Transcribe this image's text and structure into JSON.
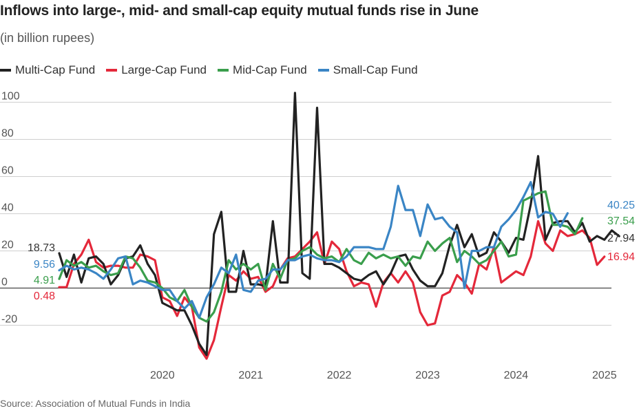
{
  "header": {
    "title": "Inflows into large-, mid- and small-cap equity mutual funds rise in June",
    "subtitle": "(in billion rupees)"
  },
  "footer": {
    "source": "Source: Association of Mutual Funds in India"
  },
  "chart_data": {
    "type": "line",
    "title": "Inflows into large-, mid- and small-cap equity mutual funds rise in June",
    "subtitle": "(in billion rupees)",
    "xlabel": "",
    "ylabel": "",
    "ylim": [
      -38,
      108
    ],
    "yticks": [
      -20,
      0,
      20,
      40,
      60,
      80,
      100
    ],
    "ytick_labels": [
      "-20",
      "0",
      "20",
      "40",
      "60",
      "80",
      "100"
    ],
    "xticks": [
      "2020",
      "2021",
      "2022",
      "2023",
      "2024",
      "2025"
    ],
    "start": "2019-05",
    "legend_position": "top-left",
    "series": [
      {
        "name": "Multi-Cap Fund",
        "color": "#222222",
        "start_label": "18.73",
        "end_label": "27.94",
        "values": [
          18.73,
          6,
          18,
          3,
          16,
          17,
          13,
          2,
          7,
          16,
          17,
          23,
          13,
          7,
          -8,
          -10,
          -12,
          -12,
          -20,
          -30,
          -36,
          29,
          41,
          -2,
          -2,
          20,
          2,
          2,
          1,
          36,
          3,
          3,
          105,
          8,
          5,
          97,
          13,
          13,
          11,
          8,
          5,
          4,
          7,
          9,
          2,
          8,
          17,
          18,
          10,
          4,
          1,
          1,
          8,
          23,
          34,
          22,
          29,
          17,
          19,
          30,
          25,
          19,
          27,
          26,
          45,
          71,
          26,
          35,
          36,
          36,
          30,
          35,
          25,
          28,
          26,
          31,
          27.94
        ]
      },
      {
        "name": "Large-Cap Fund",
        "color": "#e4283a",
        "start_label": "0.48",
        "end_label": "16.94",
        "values": [
          0.48,
          0.5,
          13,
          18,
          26,
          14,
          11,
          12,
          12,
          11,
          11,
          18,
          17,
          15,
          -5,
          -7,
          -15,
          -5,
          -10,
          -32,
          -38,
          -28,
          -10,
          7,
          4,
          9,
          5,
          6,
          -2,
          1,
          10,
          16,
          17,
          21,
          25,
          30,
          13,
          25,
          21,
          9,
          1,
          3,
          2,
          -10,
          3,
          8,
          3,
          9,
          3,
          -13,
          -20,
          -19,
          -4,
          -2,
          7,
          3,
          -3,
          13,
          10,
          22,
          3,
          6,
          9,
          7,
          17,
          36,
          24,
          20,
          31,
          28,
          29,
          31,
          27,
          12.5,
          16.94
        ]
      },
      {
        "name": "Mid-Cap Fund",
        "color": "#3a9e4c",
        "start_label": "4.91",
        "end_label": "37.54",
        "values": [
          4.91,
          15,
          12,
          14,
          11,
          12,
          9,
          7,
          8,
          17,
          16,
          11,
          4,
          3,
          0,
          -5,
          -7,
          -1,
          -10,
          -16,
          -18,
          -13,
          -2,
          15,
          10,
          13,
          10,
          13,
          -1,
          13,
          5,
          15,
          16,
          20,
          22,
          18,
          16,
          17,
          14,
          21,
          15,
          13,
          19,
          16,
          18,
          16,
          17,
          12,
          17,
          16,
          25,
          20,
          24,
          27,
          14,
          20,
          17,
          13,
          15,
          20,
          25,
          17,
          18,
          47,
          49,
          51,
          52,
          34,
          34,
          33,
          29,
          37.54
        ]
      },
      {
        "name": "Small-Cap Fund",
        "color": "#3a85c5",
        "start_label": "9.56",
        "end_label": "40.25",
        "values": [
          9.56,
          12,
          10,
          11,
          10,
          8,
          5,
          10,
          16,
          17,
          2,
          4,
          3,
          1,
          -1,
          -1,
          -7,
          -11,
          -7,
          -16,
          -5,
          2,
          11,
          8,
          18,
          -1,
          -2,
          4,
          5,
          10,
          10,
          15,
          15,
          17,
          18,
          16,
          15,
          15,
          14,
          17,
          22,
          22,
          22,
          21,
          21,
          33,
          55,
          42,
          42,
          28,
          45,
          37,
          38,
          33,
          30,
          0,
          20,
          20,
          22,
          22,
          33,
          37,
          42,
          49,
          57,
          38,
          41,
          40,
          33,
          40.25
        ]
      }
    ]
  }
}
